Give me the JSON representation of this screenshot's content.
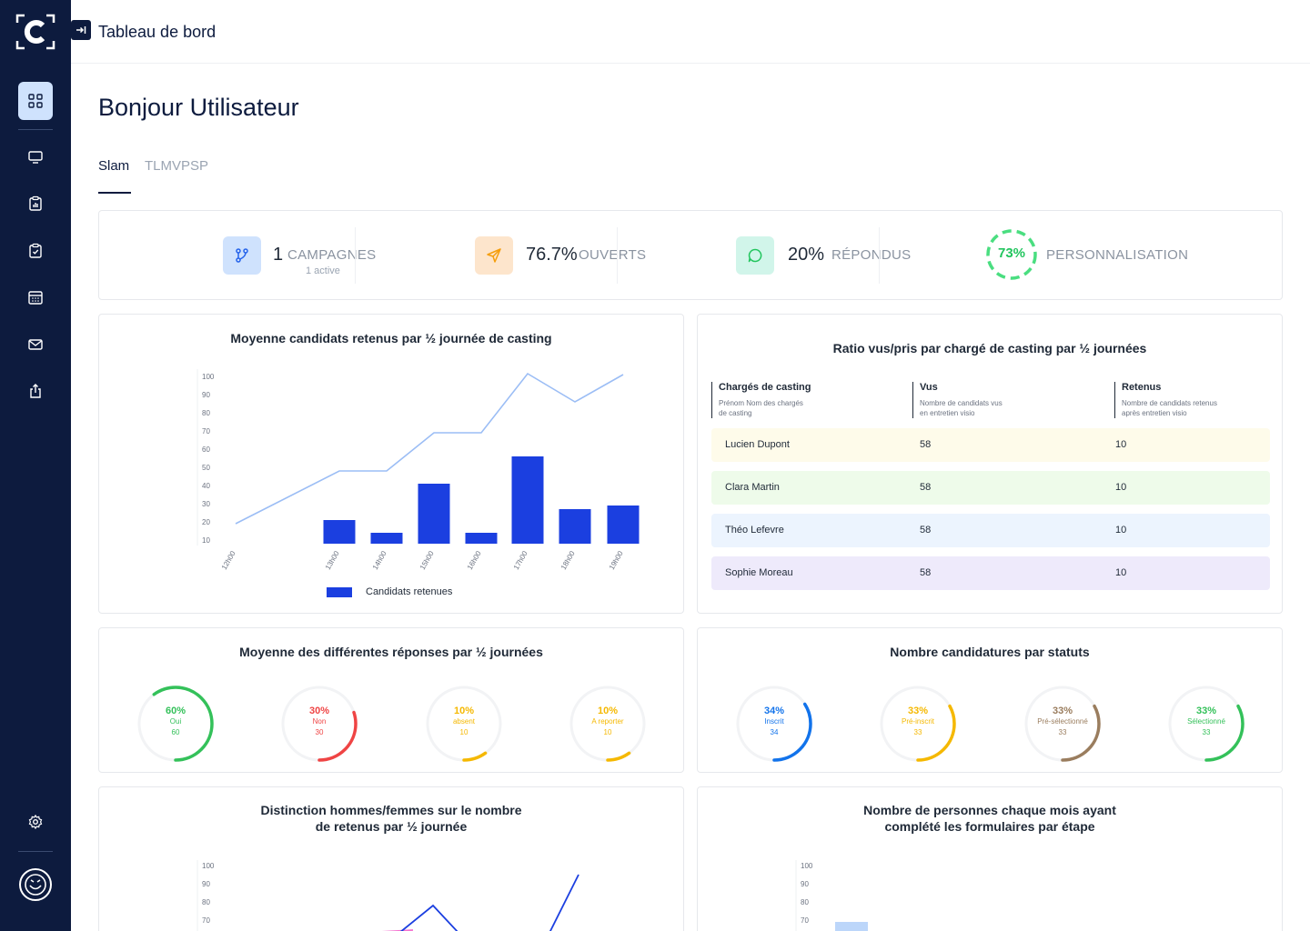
{
  "header": {
    "title": "Tableau de bord"
  },
  "greeting": "Bonjour Utilisateur",
  "tabs": [
    {
      "label": "Slam",
      "active": true
    },
    {
      "label": "TLMVPSP",
      "active": false
    }
  ],
  "stats": {
    "campaigns": {
      "value": "1",
      "label": "CAMPAGNES",
      "sub": "1 active"
    },
    "opened": {
      "value": "76.7%",
      "label": "OUVERTS"
    },
    "responded": {
      "value": "20%",
      "label": "RÉPONDUS"
    },
    "personalization": {
      "value": "73%",
      "label": "PERSONNALISATION",
      "level": 73
    }
  },
  "chart1": {
    "title": "Moyenne candidats retenus par ½ journée de casting",
    "chart_data": {
      "type": "bar",
      "categories": [
        "12h00",
        "13h00",
        "14h00",
        "15h00",
        "16h00",
        "17h00",
        "18h00",
        "19h00"
      ],
      "y_ticks": [
        "100",
        "90",
        "80",
        "70",
        "60",
        "50",
        "40",
        "30",
        "20",
        "10"
      ],
      "ylim": [
        0,
        100
      ],
      "bar_values": [
        null,
        21,
        14,
        41,
        14,
        56,
        27,
        29
      ],
      "line_values": [
        19,
        48,
        48,
        69,
        69,
        102,
        86,
        101
      ],
      "legend": "Candidats retenues",
      "colors": {
        "bar": "#1b3fe0",
        "line": "#9bbdf5"
      }
    }
  },
  "table": {
    "title": "Ratio vus/pris par chargé de casting par ½ journées",
    "columns": [
      {
        "label": "Chargés de casting",
        "desc1": "Prénom Nom des chargés",
        "desc2": "de casting"
      },
      {
        "label": "Vus",
        "desc1": "Nombre de candidats vus",
        "desc2": "en entretien visio"
      },
      {
        "label": "Retenus",
        "desc1": "Nombre de candidats retenus",
        "desc2": "après entretien visio"
      }
    ],
    "rows": [
      {
        "name": "Lucien Dupont",
        "vus": "58",
        "retenus": "10",
        "color": "#fefbea"
      },
      {
        "name": "Clara Martin",
        "vus": "58",
        "retenus": "10",
        "color": "#eefbea"
      },
      {
        "name": "Théo Lefevre",
        "vus": "58",
        "retenus": "10",
        "color": "#ecf4fe"
      },
      {
        "name": "Sophie Moreau",
        "vus": "58",
        "retenus": "10",
        "color": "#eeeafb"
      }
    ]
  },
  "responses": {
    "title": "Moyenne des différentes réponses par ½ journées",
    "items": [
      {
        "pct": "60%",
        "label": "Oui",
        "count": "60",
        "value": 60,
        "color": "#34c15a"
      },
      {
        "pct": "30%",
        "label": "Non",
        "count": "30",
        "value": 30,
        "color": "#ef4444"
      },
      {
        "pct": "10%",
        "label": "absent",
        "count": "10",
        "value": 10,
        "color": "#f5b800"
      },
      {
        "pct": "10%",
        "label": "A reporter",
        "count": "10",
        "value": 10,
        "color": "#f5b800"
      }
    ]
  },
  "statuses": {
    "title": "Nombre candidatures par statuts",
    "items": [
      {
        "pct": "34%",
        "label": "Inscrit",
        "count": "34",
        "value": 34,
        "color": "#1273eb"
      },
      {
        "pct": "33%",
        "label": "Pré-inscrit",
        "count": "33",
        "value": 33,
        "color": "#f5b800"
      },
      {
        "pct": "33%",
        "label": "Pré-sélectionné",
        "count": "33",
        "value": 33,
        "color": "#9a7d5e"
      },
      {
        "pct": "33%",
        "label": "Sélectionné",
        "count": "33",
        "value": 33,
        "color": "#34c15a"
      }
    ]
  },
  "chart3": {
    "title_line1": "Distinction hommes/femmes sur le nombre",
    "title_line2": "de retenus par ½ journée",
    "chart_data": {
      "type": "line",
      "y_ticks": [
        "100",
        "90",
        "80",
        "70"
      ]
    }
  },
  "chart4": {
    "title_line1": "Nombre de personnes chaque mois ayant",
    "title_line2": "complété les formulaires par étape",
    "chart_data": {
      "type": "bar",
      "y_ticks": [
        "100",
        "90",
        "80",
        "70"
      ]
    }
  }
}
